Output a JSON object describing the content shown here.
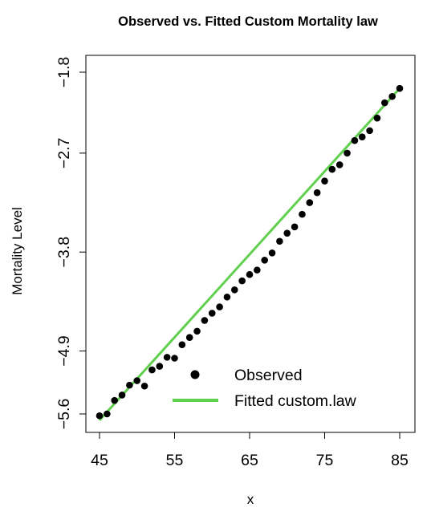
{
  "chart_data": {
    "type": "scatter",
    "title": "Observed vs. Fitted Custom Mortality law",
    "xlabel": "x",
    "ylabel": "Mortality Level",
    "xlim": [
      45,
      85
    ],
    "ylim": [
      -5.6,
      -1.8
    ],
    "x_ticks": [
      "45",
      "55",
      "65",
      "75",
      "85"
    ],
    "y_ticks": [
      "−5.6",
      "−4.9",
      "−3.8",
      "−2.7",
      "−1.8"
    ],
    "legend_position": "bottom-right",
    "grid": false,
    "series": [
      {
        "name": "Observed",
        "kind": "points",
        "color": "#000000",
        "x": [
          45,
          46,
          47,
          48,
          49,
          50,
          51,
          52,
          53,
          54,
          55,
          56,
          57,
          58,
          59,
          60,
          61,
          62,
          63,
          64,
          65,
          66,
          67,
          68,
          69,
          70,
          71,
          72,
          73,
          74,
          75,
          76,
          77,
          78,
          79,
          80,
          81,
          82,
          83,
          84,
          85
        ],
        "y": [
          -5.62,
          -5.6,
          -5.45,
          -5.39,
          -5.28,
          -5.23,
          -5.29,
          -5.11,
          -5.07,
          -4.97,
          -4.98,
          -4.83,
          -4.75,
          -4.68,
          -4.56,
          -4.48,
          -4.41,
          -4.3,
          -4.22,
          -4.12,
          -4.05,
          -4.0,
          -3.89,
          -3.81,
          -3.68,
          -3.59,
          -3.52,
          -3.38,
          -3.25,
          -3.14,
          -3.01,
          -2.88,
          -2.83,
          -2.7,
          -2.56,
          -2.52,
          -2.45,
          -2.31,
          -2.14,
          -2.07,
          -1.98
        ]
      },
      {
        "name": "Fitted custom.law",
        "kind": "line",
        "color": "#61d04f",
        "x": [
          45,
          85
        ],
        "y": [
          -5.67,
          -1.98
        ]
      }
    ]
  }
}
